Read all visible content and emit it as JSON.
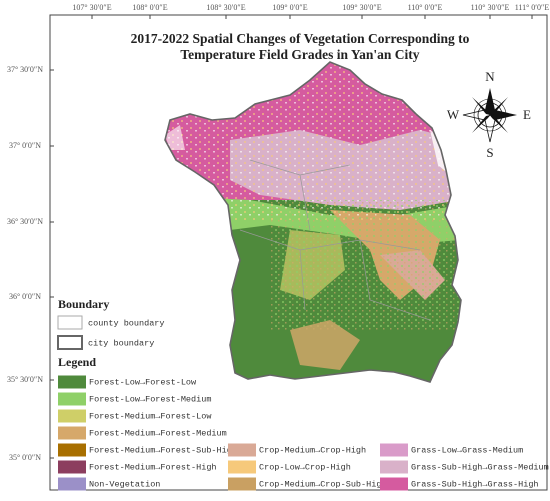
{
  "title": [
    "2017-2022 Spatial Changes of Vegetation Corresponding to",
    "Temperature Field Grades in Yan'an City"
  ],
  "longitude_labels": [
    "107° 30′0″E",
    "108° 0′0″E",
    "108° 30′0″E",
    "109° 0′0″E",
    "109° 30′0″E",
    "110° 0′0″E",
    "110° 30′0″E",
    "111° 0′0″E"
  ],
  "latitude_labels": [
    "37° 30′0″N",
    "37° 0′0″N",
    "36° 30′0″N",
    "36° 0′0″N",
    "35° 30′0″N",
    "35° 0′0″N"
  ],
  "compass": {
    "north": "N",
    "south": "S",
    "east": "E",
    "west": "W"
  },
  "boundary": {
    "heading": "Boundary",
    "items": [
      "county boundary",
      "city boundary"
    ]
  },
  "legend": {
    "heading": "Legend",
    "items": [
      {
        "name": "Forest-Low→Forest-Low",
        "color": "#4f8a3c"
      },
      {
        "name": "Forest-Low→Forest-Medium",
        "color": "#8fd068"
      },
      {
        "name": "Forest-Medium→Forest-Low",
        "color": "#cfcf68"
      },
      {
        "name": "Forest-Medium→Forest-Medium",
        "color": "#d6a86a"
      },
      {
        "name": "Forest-Medium→Forest-Sub-High",
        "color": "#a86f00"
      },
      {
        "name": "Forest-Medium→Forest-High",
        "color": "#8c3e5f"
      },
      {
        "name": "Non-Vegetation",
        "color": "#9b90c8"
      },
      {
        "name": "Crop-Medium→Crop-High",
        "color": "#d9a996"
      },
      {
        "name": "Crop-Low→Crop-High",
        "color": "#f6c97b"
      },
      {
        "name": "Crop-Medium→Crop-Sub-High",
        "color": "#c9a062"
      },
      {
        "name": "Grass-Low→Grass-Medium",
        "color": "#d99bc9"
      },
      {
        "name": "Grass-Sub-High→Grass-Medium",
        "color": "#d9b1c9"
      },
      {
        "name": "Grass-Sub-High→Grass-High",
        "color": "#d55b9f"
      }
    ]
  }
}
